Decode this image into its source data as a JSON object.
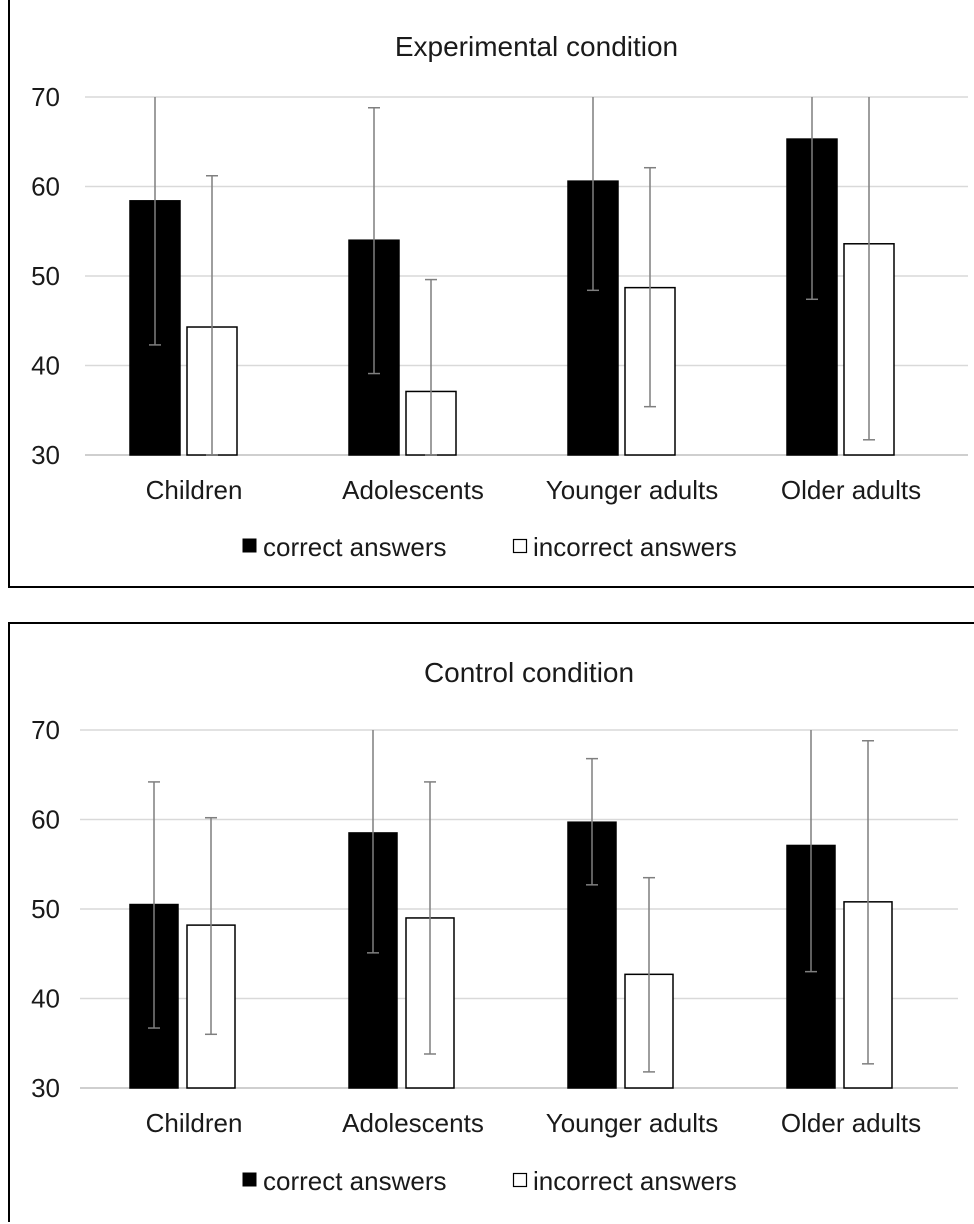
{
  "chart_data": [
    {
      "type": "bar",
      "title": "Experimental condition",
      "categories": [
        "Children",
        "Adolescents",
        "Younger adults",
        "Older adults"
      ],
      "ylim": [
        30,
        70
      ],
      "yticks": [
        "30",
        "40",
        "50",
        "60",
        "70"
      ],
      "grid": true,
      "legend_position": "bottom",
      "series": [
        {
          "name": "correct answers",
          "color": "#000000",
          "values": [
            58.4,
            54.0,
            60.6,
            65.3
          ],
          "error_low": [
            42.3,
            39.1,
            48.4,
            47.4
          ],
          "error_high": [
            70.0,
            68.8,
            70.0,
            70.0
          ]
        },
        {
          "name": "incorrect answers",
          "color": "#ffffff",
          "values": [
            44.3,
            37.1,
            48.7,
            53.6
          ],
          "error_low": [
            30.0,
            30.0,
            35.4,
            31.7
          ],
          "error_high": [
            61.2,
            49.6,
            62.1,
            70.0
          ]
        }
      ]
    },
    {
      "type": "bar",
      "title": "Control condition",
      "categories": [
        "Children",
        "Adolescents",
        "Younger adults",
        "Older adults"
      ],
      "ylim": [
        30,
        70
      ],
      "yticks": [
        "30",
        "40",
        "50",
        "60",
        "70"
      ],
      "grid": true,
      "legend_position": "bottom",
      "series": [
        {
          "name": "correct answers",
          "color": "#000000",
          "values": [
            50.5,
            58.5,
            59.7,
            57.1
          ],
          "error_low": [
            36.7,
            45.1,
            52.7,
            43.0
          ],
          "error_high": [
            64.2,
            70.0,
            66.8,
            70.0
          ]
        },
        {
          "name": "incorrect answers",
          "color": "#ffffff",
          "values": [
            48.2,
            49.0,
            42.7,
            50.8
          ],
          "error_low": [
            36.0,
            33.8,
            31.8,
            32.7
          ],
          "error_high": [
            60.2,
            64.2,
            53.5,
            68.8
          ]
        }
      ]
    }
  ]
}
